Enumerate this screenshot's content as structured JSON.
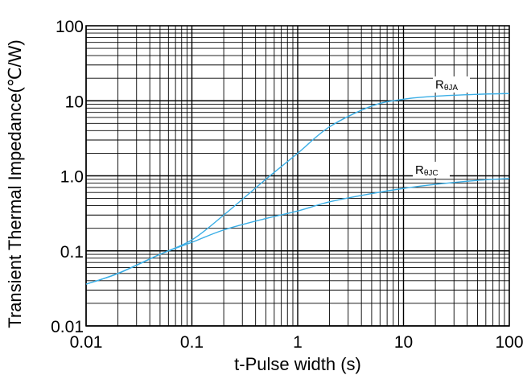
{
  "chart_data": {
    "type": "line",
    "x_scale": "log",
    "y_scale": "log",
    "xlim": [
      0.01,
      100
    ],
    "ylim": [
      0.01,
      100
    ],
    "grid": true,
    "xlabel": "t-Pulse width (s)",
    "ylabel": "Transient Thermal Impedance(℃/W)",
    "x_ticks": [
      "0.01",
      "0.1",
      "1",
      "10",
      "100"
    ],
    "y_ticks": [
      "0.01",
      "0.1",
      "1.0",
      "10",
      "100"
    ],
    "line_color": "#3aaee6",
    "series": [
      {
        "label_main": "R",
        "label_sub": "θJA",
        "x": [
          0.01,
          0.02,
          0.05,
          0.1,
          0.2,
          0.5,
          1,
          2,
          5,
          10,
          20,
          50,
          100
        ],
        "y": [
          0.036,
          0.05,
          0.09,
          0.14,
          0.3,
          0.9,
          2.0,
          4.5,
          8.5,
          10.5,
          11.5,
          12.2,
          12.5
        ]
      },
      {
        "label_main": "R",
        "label_sub": "θJC",
        "x": [
          0.01,
          0.02,
          0.05,
          0.1,
          0.2,
          0.5,
          1,
          2,
          5,
          10,
          20,
          50,
          100
        ],
        "y": [
          0.036,
          0.05,
          0.09,
          0.13,
          0.19,
          0.27,
          0.34,
          0.45,
          0.58,
          0.68,
          0.77,
          0.87,
          0.92
        ]
      }
    ]
  }
}
